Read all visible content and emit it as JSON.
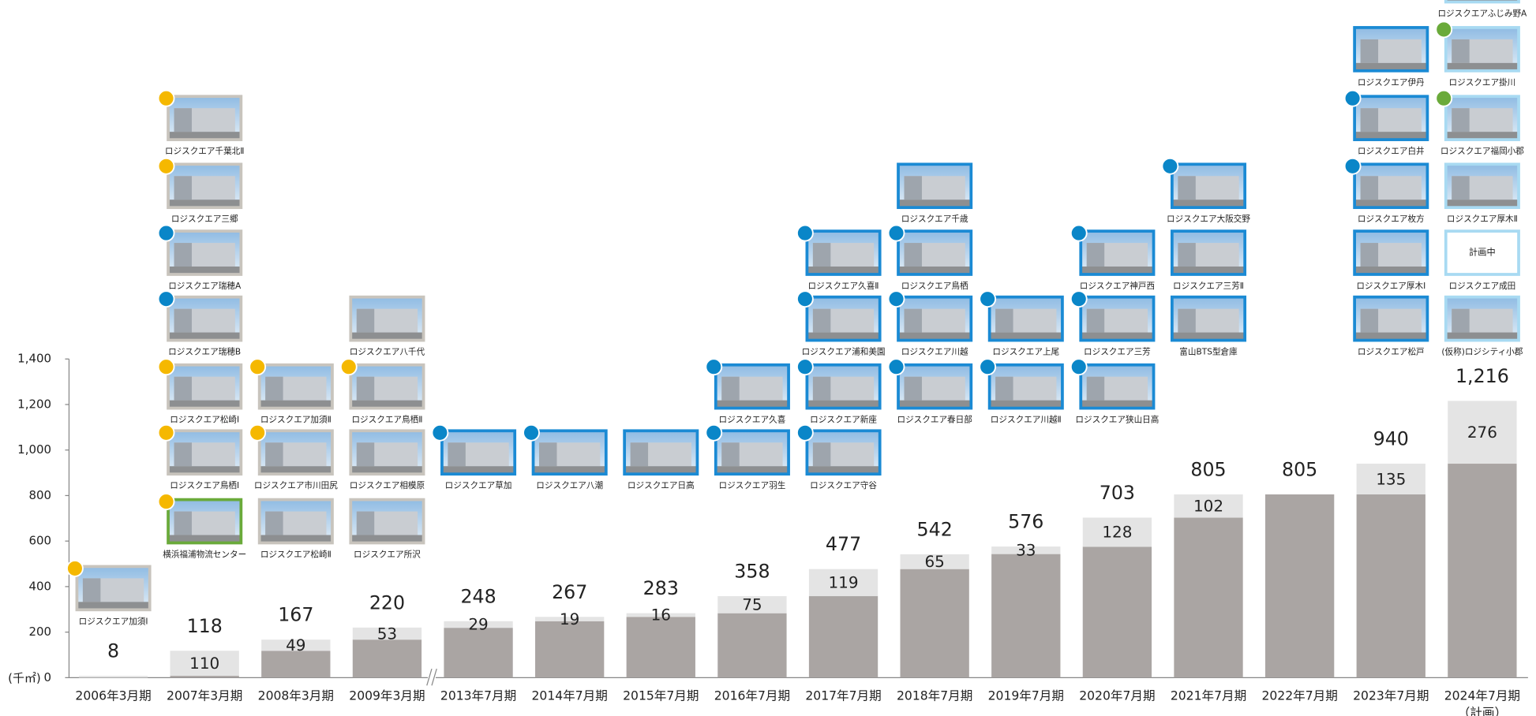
{
  "chart_data": {
    "type": "bar",
    "stacked": true,
    "categories": [
      "2006年3月期",
      "2007年3月期",
      "2008年3月期",
      "2009年3月期",
      "2013年7月期",
      "2014年7月期",
      "2015年7月期",
      "2016年7月期",
      "2017年7月期",
      "2018年7月期",
      "2019年7月期",
      "2020年7月期",
      "2021年7月期",
      "2022年7月期",
      "2023年7月期",
      "2024年7月期"
    ],
    "category_notes": [
      null,
      null,
      null,
      null,
      null,
      null,
      null,
      null,
      null,
      null,
      null,
      null,
      null,
      null,
      null,
      "（計画）"
    ],
    "series": [
      {
        "color": "#aaa5a3",
        "values": [
          0,
          8,
          118,
          167,
          219,
          248,
          267,
          283,
          358,
          477,
          543,
          575,
          703,
          805,
          805,
          940
        ]
      },
      {
        "color": "#e4e4e4",
        "values": [
          8,
          110,
          49,
          53,
          29,
          19,
          16,
          75,
          119,
          65,
          33,
          128,
          102,
          null,
          135,
          276
        ]
      }
    ],
    "totals": {
      "values": [
        8,
        118,
        167,
        220,
        248,
        267,
        283,
        358,
        477,
        542,
        576,
        703,
        805,
        805,
        940,
        1216
      ],
      "value_labels": [
        "8",
        "118",
        "167",
        "220",
        "248",
        "267",
        "283",
        "358",
        "477",
        "542",
        "576",
        "703",
        "805",
        "805",
        "940",
        "1,216"
      ]
    },
    "unit_label": "(千㎡)",
    "ylim": [
      0,
      1400
    ],
    "yticks": [
      0,
      200,
      400,
      600,
      800,
      {
        "value": 1000,
        "label": "1,000"
      },
      {
        "value": 1200,
        "label": "1,200"
      },
      {
        "value": 1400,
        "label": "1,400"
      }
    ],
    "axis_break_after": 3,
    "photos": [
      [
        {
          "label": "ロジスクエア加須Ⅰ",
          "dot": "#f5b800",
          "frame": "#c8c4bd"
        }
      ],
      [
        {
          "label": "横浜福浦物流センター",
          "dot": "#f5b800",
          "frame": "#6aaa3a"
        },
        {
          "label": "ロジスクエア鳥栖Ⅰ",
          "dot": "#f5b800",
          "frame": "#c8c4bd"
        },
        {
          "label": "ロジスクエア松崎Ⅰ",
          "dot": "#f5b800",
          "frame": "#c8c4bd"
        },
        {
          "label": "ロジスクエア瑞穂B",
          "dot": "#0a86c8",
          "frame": "#c8c4bd"
        },
        {
          "label": "ロジスクエア瑞穂A",
          "dot": "#0a86c8",
          "frame": "#c8c4bd"
        },
        {
          "label": "ロジスクエア三郷",
          "dot": "#f5b800",
          "frame": "#c8c4bd"
        },
        {
          "label": "ロジスクエア千葉北Ⅱ",
          "dot": "#f5b800",
          "frame": "#c8c4bd"
        }
      ],
      [
        {
          "label": "ロジスクエア松崎Ⅱ",
          "dot": null,
          "frame": "#c8c4bd"
        },
        {
          "label": "ロジスクエア市川田尻",
          "dot": "#f5b800",
          "frame": "#c8c4bd"
        },
        {
          "label": "ロジスクエア加須Ⅱ",
          "dot": "#f5b800",
          "frame": "#c8c4bd"
        }
      ],
      [
        {
          "label": "ロジスクエア所沢",
          "dot": null,
          "frame": "#c8c4bd"
        },
        {
          "label": "ロジスクエア相模原",
          "dot": null,
          "frame": "#c8c4bd"
        },
        {
          "label": "ロジスクエア鳥栖Ⅱ",
          "dot": "#f5b800",
          "frame": "#c8c4bd"
        },
        {
          "label": "ロジスクエア八千代",
          "dot": null,
          "frame": "#c8c4bd"
        }
      ],
      [
        {
          "label": "ロジスクエア草加",
          "dot": "#0a86c8",
          "frame": "#1a8ad4"
        }
      ],
      [
        {
          "label": "ロジスクエア八潮",
          "dot": "#0a86c8",
          "frame": "#1a8ad4"
        }
      ],
      [
        {
          "label": "ロジスクエア日高",
          "dot": null,
          "frame": "#1a8ad4"
        }
      ],
      [
        {
          "label": "ロジスクエア羽生",
          "dot": "#0a86c8",
          "frame": "#1a8ad4"
        },
        {
          "label": "ロジスクエア久喜",
          "dot": "#0a86c8",
          "frame": "#1a8ad4"
        }
      ],
      [
        {
          "label": "ロジスクエア守谷",
          "dot": "#0a86c8",
          "frame": "#1a8ad4"
        },
        {
          "label": "ロジスクエア新座",
          "dot": "#0a86c8",
          "frame": "#1a8ad4"
        },
        {
          "label": "ロジスクエア浦和美園",
          "dot": "#0a86c8",
          "frame": "#1a8ad4"
        },
        {
          "label": "ロジスクエア久喜Ⅱ",
          "dot": "#0a86c8",
          "frame": "#1a8ad4"
        }
      ],
      [
        {
          "label": "ロジスクエア春日部",
          "dot": "#0a86c8",
          "frame": "#1a8ad4"
        },
        {
          "label": "ロジスクエア川越",
          "dot": "#0a86c8",
          "frame": "#1a8ad4"
        },
        {
          "label": "ロジスクエア鳥栖",
          "dot": "#0a86c8",
          "frame": "#1a8ad4"
        },
        {
          "label": "ロジスクエア千歳",
          "dot": null,
          "frame": "#1a8ad4"
        }
      ],
      [
        {
          "label": "ロジスクエア川越Ⅱ",
          "dot": "#0a86c8",
          "frame": "#1a8ad4"
        },
        {
          "label": "ロジスクエア上尾",
          "dot": "#0a86c8",
          "frame": "#1a8ad4"
        }
      ],
      [
        {
          "label": "ロジスクエア狭山日高",
          "dot": "#0a86c8",
          "frame": "#1a8ad4"
        },
        {
          "label": "ロジスクエア三芳",
          "dot": "#0a86c8",
          "frame": "#1a8ad4"
        },
        {
          "label": "ロジスクエア神戸西",
          "dot": "#0a86c8",
          "frame": "#1a8ad4"
        }
      ],
      [
        {
          "label": "富山BTS型倉庫",
          "dot": null,
          "frame": "#1a8ad4"
        },
        {
          "label": "ロジスクエア三芳Ⅱ",
          "dot": null,
          "frame": "#1a8ad4"
        },
        {
          "label": "ロジスクエア大阪交野",
          "dot": "#0a86c8",
          "frame": "#1a8ad4"
        }
      ],
      [],
      [
        {
          "label": "ロジスクエア松戸",
          "dot": null,
          "frame": "#1a8ad4"
        },
        {
          "label": "ロジスクエア厚木Ⅰ",
          "dot": null,
          "frame": "#1a8ad4"
        },
        {
          "label": "ロジスクエア枚方",
          "dot": "#0a86c8",
          "frame": "#1a8ad4"
        },
        {
          "label": "ロジスクエア白井",
          "dot": "#0a86c8",
          "frame": "#1a8ad4"
        },
        {
          "label": "ロジスクエア伊丹",
          "dot": null,
          "frame": "#1a8ad4"
        }
      ],
      [
        {
          "label": "(仮称)ロジシティ小郡",
          "dot": null,
          "frame": "#a8daf2"
        },
        {
          "label": "ロジスクエア成田",
          "dot": null,
          "frame": "#a8daf2",
          "text": "計画中"
        },
        {
          "label": "ロジスクエア厚木Ⅱ",
          "dot": null,
          "frame": "#a8daf2"
        },
        {
          "label": "ロジスクエア福岡小郡",
          "dot": "#6aaa3a",
          "frame": "#a8daf2"
        },
        {
          "label": "ロジスクエア掛川",
          "dot": "#6aaa3a",
          "frame": "#a8daf2"
        },
        {
          "label": "ロジスクエアふじみ野A",
          "dot": null,
          "frame": "#a8daf2"
        }
      ]
    ]
  }
}
